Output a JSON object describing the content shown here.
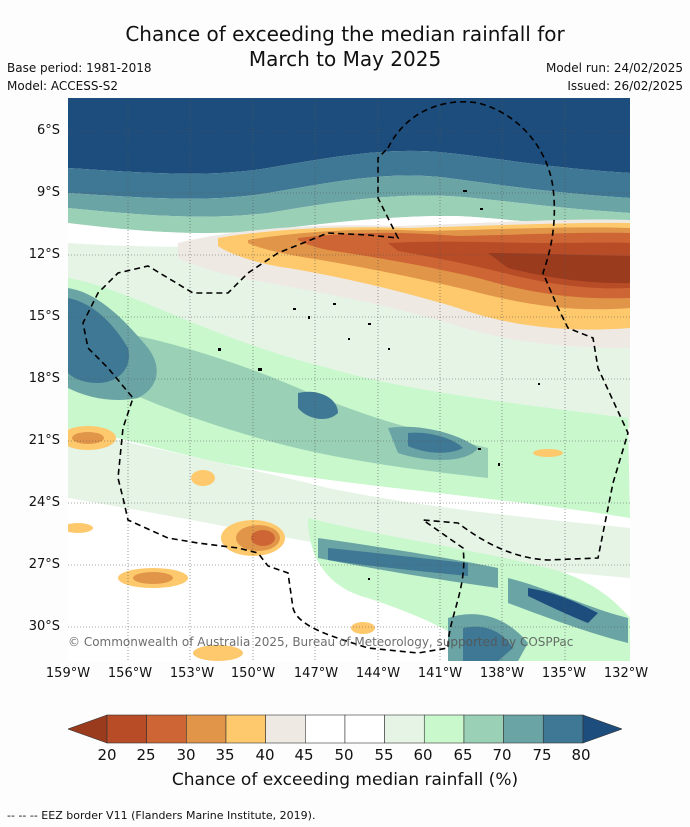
{
  "title": {
    "line1": "Chance of exceeding the median rainfall for",
    "line2": "March to May 2025"
  },
  "meta": {
    "base_period": "Base period: 1981-2018",
    "model": "Model: ACCESS-S2",
    "model_run": "Model run: 24/02/2025",
    "issued": "Issued: 26/02/2025"
  },
  "map": {
    "lat_labels": [
      "6°S",
      "9°S",
      "12°S",
      "15°S",
      "18°S",
      "21°S",
      "24°S",
      "27°S",
      "30°S"
    ],
    "lon_labels": [
      "159°W",
      "156°W",
      "153°W",
      "150°W",
      "147°W",
      "144°W",
      "141°W",
      "138°W",
      "135°W",
      "132°W"
    ],
    "copyright": "© Commonwealth of Australia 2025, Bureau of Meteorology, supported by COSPPac"
  },
  "colorbar": {
    "title": "Chance of exceeding median rainfall (%)",
    "labels": [
      "20",
      "25",
      "30",
      "35",
      "40",
      "45",
      "50",
      "55",
      "60",
      "65",
      "70",
      "75",
      "80"
    ],
    "colors": [
      "#9a3b1e",
      "#b84c27",
      "#cd6634",
      "#e19548",
      "#fdc96c",
      "#efe9e4",
      "#ffffff",
      "#ffffff",
      "#e6f4e6",
      "#c8f8cc",
      "#9ad0b6",
      "#6aa4a4",
      "#3f7894",
      "#1c4d7c"
    ]
  },
  "footnote": "--  --  -- EEZ border V11 (Flanders Marine Institute, 2019)."
}
